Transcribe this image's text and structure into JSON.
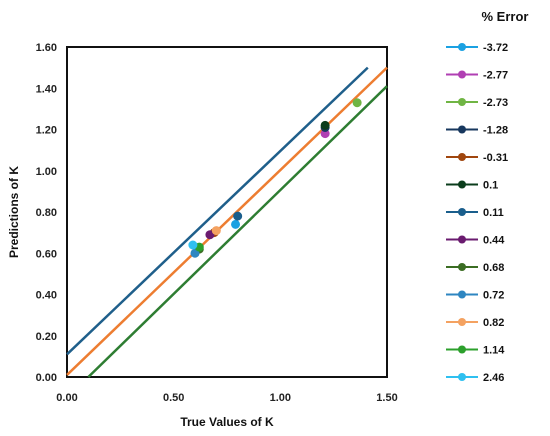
{
  "chart_data": {
    "type": "scatter",
    "xlabel": "True Values of K",
    "ylabel": "Predictions of K",
    "xlim": [
      0,
      1.5
    ],
    "ylim": [
      0,
      1.6
    ],
    "x_ticks": [
      "0.00",
      "0.50",
      "1.00",
      "1.50"
    ],
    "y_ticks": [
      "0.00",
      "0.20",
      "0.40",
      "0.60",
      "0.80",
      "1.00",
      "1.20",
      "1.40",
      "1.60"
    ],
    "grid": false,
    "legend_title": "% Error",
    "legend_position": "right",
    "reference_lines": [
      {
        "color": "#1f5f8b",
        "points": [
          [
            0.0,
            0.11
          ],
          [
            1.41,
            1.5
          ]
        ]
      },
      {
        "color": "#ed7d31",
        "points": [
          [
            0.0,
            0.01
          ],
          [
            1.5,
            1.5
          ]
        ]
      },
      {
        "color": "#2e7d32",
        "points": [
          [
            0.1,
            0.0
          ],
          [
            1.5,
            1.41
          ]
        ]
      }
    ],
    "series": [
      {
        "name": "-3.72",
        "color": "#1ba1e2",
        "x": 0.79,
        "y": 0.74
      },
      {
        "name": "-2.77",
        "color": "#b03fb3",
        "x": 1.21,
        "y": 1.18
      },
      {
        "name": "-2.73",
        "color": "#70b544",
        "x": 1.36,
        "y": 1.33
      },
      {
        "name": "-1.28",
        "color": "#17375e",
        "x": 1.21,
        "y": 1.21
      },
      {
        "name": "-0.31",
        "color": "#a0460e",
        "x": 0.69,
        "y": 0.7
      },
      {
        "name": "0.1",
        "color": "#0b3d1c",
        "x": 1.21,
        "y": 1.22
      },
      {
        "name": "0.11",
        "color": "#1a5e8c",
        "x": 0.8,
        "y": 0.78
      },
      {
        "name": "0.44",
        "color": "#6a1b6f",
        "x": 0.67,
        "y": 0.69
      },
      {
        "name": "0.68",
        "color": "#3b6d23",
        "x": 0.62,
        "y": 0.62
      },
      {
        "name": "0.72",
        "color": "#2e86c1",
        "x": 0.6,
        "y": 0.6
      },
      {
        "name": "0.82",
        "color": "#f4a261",
        "x": 0.7,
        "y": 0.71
      },
      {
        "name": "1.14",
        "color": "#2ca02c",
        "x": 0.62,
        "y": 0.63
      },
      {
        "name": "2.46",
        "color": "#2fc0f0",
        "x": 0.59,
        "y": 0.64
      }
    ]
  }
}
